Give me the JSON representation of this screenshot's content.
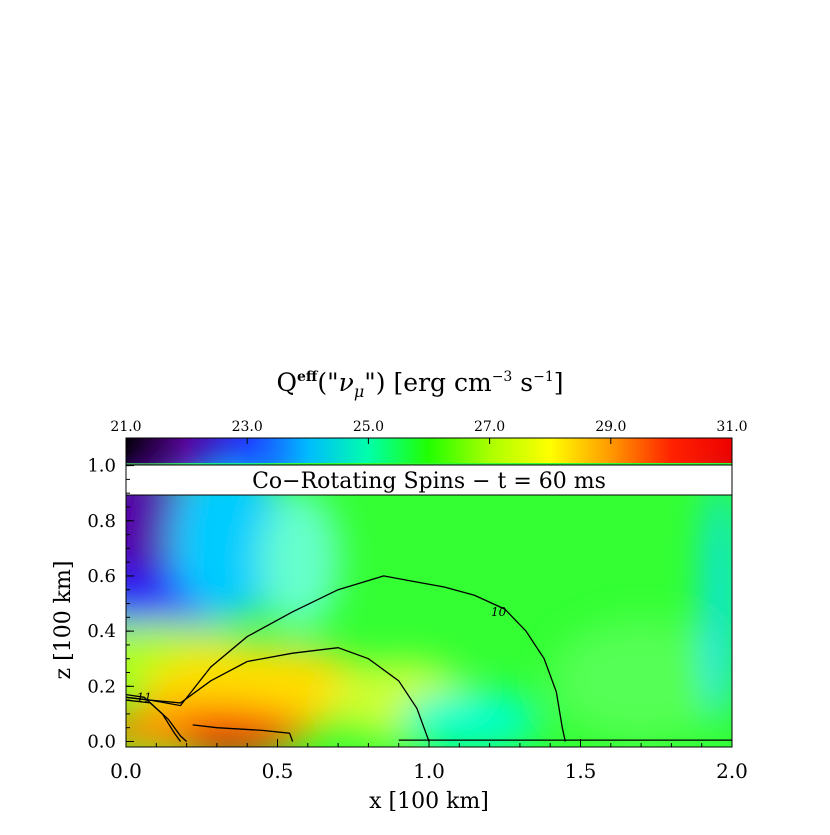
{
  "chart_data": {
    "type": "heatmap",
    "title": "Q^eff(\"ν_μ\") [erg cm^-3 s^-1]",
    "title_parts": {
      "q": "Q",
      "sup": "eff",
      "open": "(\"",
      "nu": "ν",
      "mu": "μ",
      "close": "\")",
      "units_a": "[erg cm",
      "units_exp1": "−3",
      "units_b": " s",
      "units_exp2": "−1",
      "units_c": "]"
    },
    "panel_label": "Co−Rotating Spins − t = 60 ms",
    "xlabel": "x [100 km]",
    "ylabel": "z [100 km]",
    "xlim": [
      0.0,
      2.0
    ],
    "ylim": [
      -0.02,
      1.1
    ],
    "x_ticks": [
      "0.0",
      "0.5",
      "1.0",
      "1.5",
      "2.0"
    ],
    "y_ticks": [
      "0.0",
      "0.2",
      "0.4",
      "0.6",
      "0.8",
      "1.0"
    ],
    "colorbar": {
      "range": [
        21.0,
        31.0
      ],
      "ticks": [
        "21.0",
        "23.0",
        "25.0",
        "27.0",
        "29.0",
        "31.0"
      ],
      "colormap": [
        "#000000",
        "#5a0099",
        "#2233ff",
        "#00bbff",
        "#00ffaa",
        "#22ff00",
        "#aaff00",
        "#ffff00",
        "#ff9900",
        "#ff2200",
        "#ee0000"
      ]
    },
    "contours": [
      {
        "label": "10",
        "points": [
          [
            0.0,
            0.16
          ],
          [
            0.08,
            0.15
          ],
          [
            0.18,
            0.13
          ],
          [
            0.28,
            0.27
          ],
          [
            0.4,
            0.38
          ],
          [
            0.55,
            0.47
          ],
          [
            0.7,
            0.55
          ],
          [
            0.85,
            0.6
          ],
          [
            0.95,
            0.58
          ],
          [
            1.05,
            0.56
          ],
          [
            1.15,
            0.53
          ],
          [
            1.25,
            0.48
          ],
          [
            1.32,
            0.4
          ],
          [
            1.38,
            0.3
          ],
          [
            1.42,
            0.18
          ],
          [
            1.44,
            0.05
          ],
          [
            1.45,
            0.0
          ]
        ]
      },
      {
        "label": "",
        "points": [
          [
            0.0,
            0.16
          ],
          [
            0.08,
            0.15
          ],
          [
            0.18,
            0.14
          ],
          [
            0.28,
            0.22
          ],
          [
            0.4,
            0.29
          ],
          [
            0.55,
            0.32
          ],
          [
            0.7,
            0.34
          ],
          [
            0.8,
            0.3
          ],
          [
            0.9,
            0.22
          ],
          [
            0.96,
            0.12
          ],
          [
            0.99,
            0.03
          ],
          [
            1.0,
            0.0
          ]
        ]
      },
      {
        "label": "11",
        "points": [
          [
            0.0,
            0.17
          ],
          [
            0.06,
            0.16
          ],
          [
            0.12,
            0.1
          ],
          [
            0.16,
            0.03
          ],
          [
            0.18,
            0.0
          ]
        ]
      },
      {
        "label": "",
        "points": [
          [
            0.0,
            0.15
          ],
          [
            0.08,
            0.14
          ],
          [
            0.14,
            0.08
          ],
          [
            0.18,
            0.02
          ],
          [
            0.2,
            0.0
          ]
        ]
      },
      {
        "label": "",
        "points": [
          [
            0.22,
            0.06
          ],
          [
            0.3,
            0.05
          ],
          [
            0.45,
            0.04
          ],
          [
            0.54,
            0.03
          ],
          [
            0.55,
            0.0
          ]
        ]
      },
      {
        "label": "",
        "points": [
          [
            0.9,
            0.005
          ],
          [
            1.2,
            0.005
          ],
          [
            1.45,
            0.005
          ],
          [
            2.0,
            0.005
          ]
        ]
      }
    ]
  }
}
